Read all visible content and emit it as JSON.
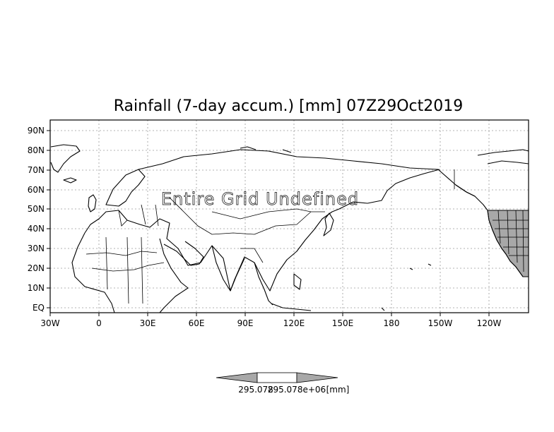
{
  "title": "Rainfall (7-day accum.) [mm] 07Z29Oct2019",
  "map_message": "Entire Grid Undefined",
  "lat_ticks": [
    "90N",
    "80N",
    "70N",
    "60N",
    "50N",
    "40N",
    "30N",
    "20N",
    "10N",
    "EQ"
  ],
  "lon_ticks": [
    "30W",
    "0",
    "30E",
    "60E",
    "90E",
    "120E",
    "150E",
    "180",
    "150W",
    "120W"
  ],
  "colorbar": {
    "label_left": "295.078",
    "label_mid": "295.078e+06",
    "label_right": "[mm]"
  },
  "colors": {
    "shaded_region": "#a8a8a8",
    "gridline": "#9a9a9a"
  }
}
